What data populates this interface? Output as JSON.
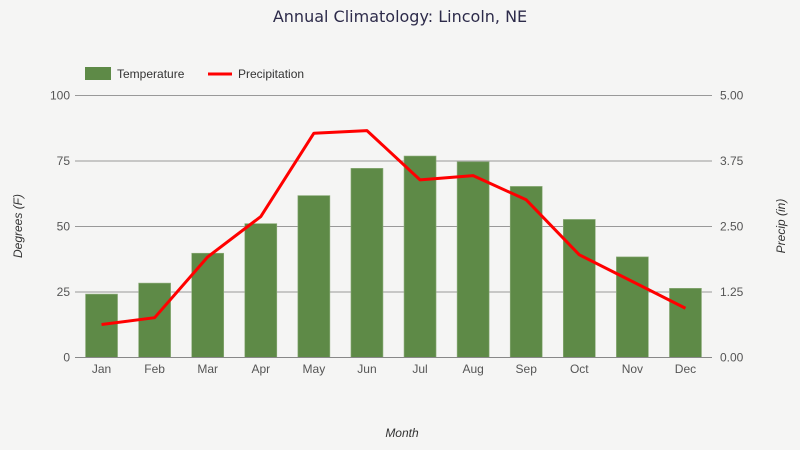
{
  "chart_data": {
    "type": "bar",
    "title": "Annual Climatology: Lincoln, NE",
    "xlabel": "Month",
    "ylabel": "Degrees (F)",
    "y2label": "Precip (in)",
    "categories": [
      "Jan",
      "Feb",
      "Mar",
      "Apr",
      "May",
      "Jun",
      "Jul",
      "Aug",
      "Sep",
      "Oct",
      "Nov",
      "Dec"
    ],
    "ylim": [
      0,
      100
    ],
    "y2lim": [
      0,
      5
    ],
    "yticks": [
      "0",
      "25",
      "50",
      "75",
      "100"
    ],
    "y2ticks": [
      "0.00",
      "1.25",
      "2.50",
      "3.75",
      "5.00"
    ],
    "grid": true,
    "legend_position": "top-left",
    "series": [
      {
        "name": "Temperature",
        "type": "bar",
        "axis": "left",
        "color": "#5e8a47",
        "values": [
          24.2,
          28.4,
          39.8,
          51.1,
          61.8,
          72.2,
          76.9,
          74.7,
          65.3,
          52.7,
          38.4,
          26.4
        ]
      },
      {
        "name": "Precipitation",
        "type": "line",
        "axis": "right",
        "color": "#ff0000",
        "values": [
          0.63,
          0.76,
          1.92,
          2.69,
          4.28,
          4.33,
          3.39,
          3.47,
          3.01,
          1.96,
          1.45,
          0.94
        ]
      }
    ]
  }
}
